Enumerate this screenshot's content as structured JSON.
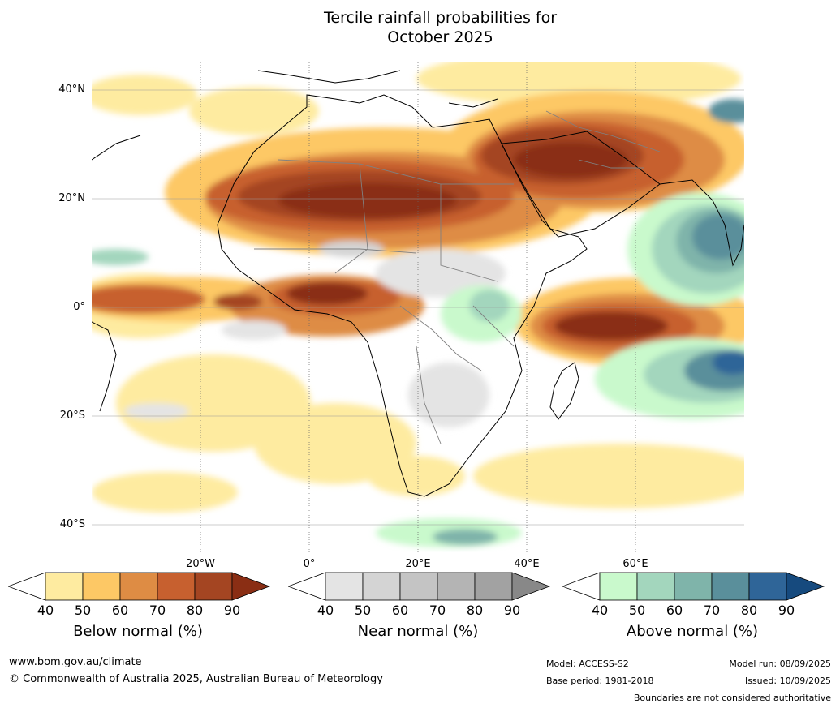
{
  "title_line1": "Tercile rainfall probabilities for",
  "title_line2": "October 2025",
  "lat_labels": [
    "40°N",
    "20°N",
    "0°",
    "20°S",
    "40°S"
  ],
  "lon_labels": [
    "20°W",
    "0°",
    "20°E",
    "40°E",
    "60°E"
  ],
  "colorbars": [
    {
      "title": "Below normal (%)",
      "ticks": [
        "40",
        "50",
        "60",
        "70",
        "80",
        "90"
      ],
      "colors": [
        "#ffffff",
        "#feeba0",
        "#fdc865",
        "#de8c44",
        "#c7602f",
        "#a44522",
        "#8a2e14"
      ]
    },
    {
      "title": "Near normal (%)",
      "ticks": [
        "40",
        "50",
        "60",
        "70",
        "80",
        "90"
      ],
      "colors": [
        "#ffffff",
        "#e4e4e4",
        "#d4d4d4",
        "#c4c4c4",
        "#b4b4b4",
        "#a2a2a2",
        "#888888"
      ]
    },
    {
      "title": "Above normal (%)",
      "ticks": [
        "40",
        "50",
        "60",
        "70",
        "80",
        "90"
      ],
      "colors": [
        "#ffffff",
        "#c9f9cc",
        "#a3d6bd",
        "#7fb4aa",
        "#5a8f9b",
        "#2f6598",
        "#164a7e"
      ]
    }
  ],
  "footer": {
    "url": "www.bom.gov.au/climate",
    "copyright": "© Commonwealth of Australia 2025, Australian Bureau of Meteorology",
    "model": "Model: ACCESS-S2",
    "base_period": "Base period: 1981-2018",
    "model_run": "Model run: 08/09/2025",
    "issued": "Issued: 10/09/2025",
    "disclaimer": "Boundaries are not considered authoritative"
  }
}
